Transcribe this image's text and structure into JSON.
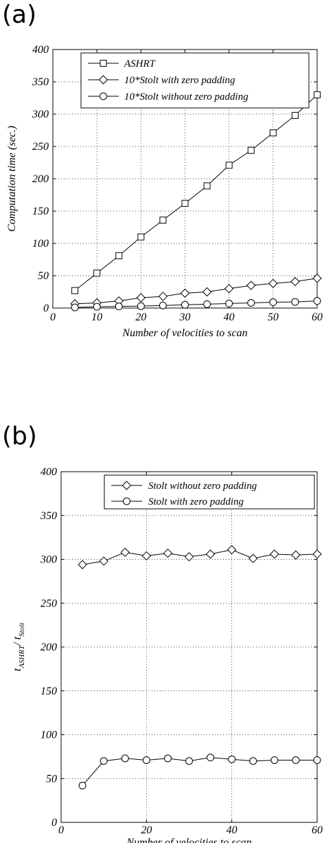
{
  "panels": {
    "a": {
      "letter": "(a)"
    },
    "b": {
      "letter": "(b)"
    }
  },
  "chart_data": [
    {
      "type": "line",
      "panel": "a",
      "xlabel": "Number of velocities to scan",
      "ylabel": "Computation time (sec.)",
      "xlim": [
        0,
        60
      ],
      "ylim": [
        0,
        400
      ],
      "xticks": [
        0,
        10,
        20,
        30,
        40,
        50,
        60
      ],
      "yticks": [
        0,
        50,
        100,
        150,
        200,
        250,
        300,
        350,
        400
      ],
      "grid": true,
      "legend_position": "top-right",
      "x": [
        5,
        10,
        15,
        20,
        25,
        30,
        35,
        40,
        45,
        50,
        55,
        60
      ],
      "series": [
        {
          "name": "ASHRT",
          "marker": "square",
          "values": [
            27,
            54,
            81,
            110,
            136,
            162,
            189,
            221,
            244,
            271,
            298,
            330
          ]
        },
        {
          "name": "10*Stolt with zero padding",
          "marker": "diamond",
          "values": [
            6.5,
            8,
            11,
            16,
            18,
            23,
            25,
            30,
            35,
            38,
            41,
            46
          ]
        },
        {
          "name": "10*Stolt without zero padding",
          "marker": "circle",
          "values": [
            1,
            2,
            2.5,
            3,
            4,
            5,
            6,
            7,
            8,
            9,
            9.5,
            11
          ]
        }
      ]
    },
    {
      "type": "line",
      "panel": "b",
      "xlabel": "Number of velocities to scan",
      "ylabel_main": "t",
      "ylabel_sub1": "ASHRT",
      "ylabel_sep": "/ t",
      "ylabel_sub2": "Stolt",
      "xlim": [
        0,
        60
      ],
      "ylim": [
        0,
        400
      ],
      "xticks": [
        0,
        20,
        40,
        60
      ],
      "yticks": [
        0,
        50,
        100,
        150,
        200,
        250,
        300,
        350,
        400
      ],
      "grid": true,
      "legend_position": "top-right",
      "x": [
        5,
        10,
        15,
        20,
        25,
        30,
        35,
        40,
        45,
        50,
        55,
        60
      ],
      "series": [
        {
          "name": "Stolt without zero padding",
          "marker": "diamond",
          "values": [
            294,
            298,
            308,
            304,
            307,
            303,
            306,
            311,
            301,
            306,
            305,
            306
          ]
        },
        {
          "name": "Stolt with zero padding",
          "marker": "circle",
          "values": [
            42,
            70,
            73,
            71,
            73,
            70,
            74,
            72,
            70,
            71,
            71,
            71
          ]
        }
      ]
    }
  ]
}
